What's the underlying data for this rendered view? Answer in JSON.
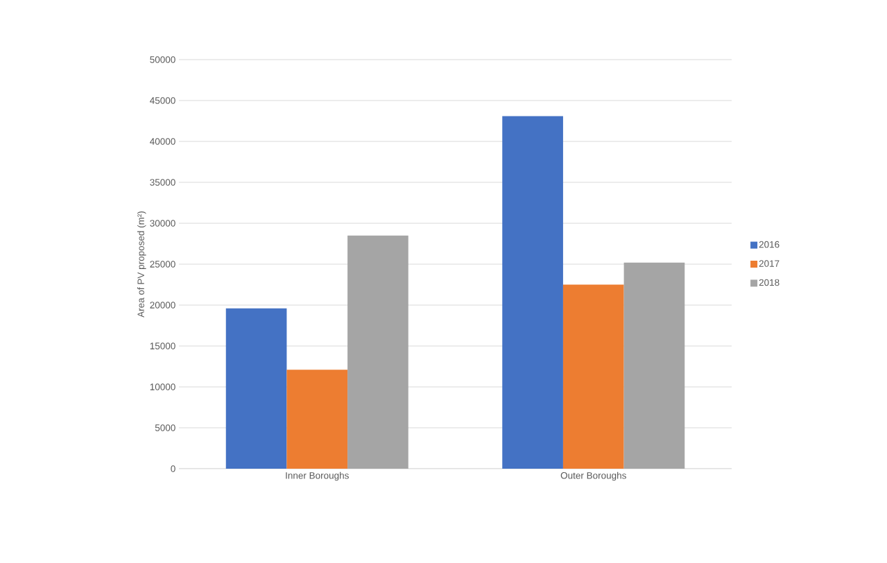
{
  "chart_data": {
    "type": "bar",
    "ylabel": "Area of PV proposed (m²)",
    "categories": [
      "Inner Boroughs",
      "Outer Boroughs"
    ],
    "series": [
      {
        "name": "2016",
        "color": "#4472c4",
        "values": [
          19600,
          43100
        ]
      },
      {
        "name": "2017",
        "color": "#ed7d31",
        "values": [
          12100,
          22500
        ]
      },
      {
        "name": "2018",
        "color": "#a5a5a5",
        "values": [
          28500,
          25200
        ]
      }
    ],
    "ylim": [
      0,
      50000
    ],
    "yticks": [
      0,
      5000,
      10000,
      15000,
      20000,
      25000,
      30000,
      35000,
      40000,
      45000,
      50000
    ],
    "grid": "y",
    "legend": "right"
  }
}
